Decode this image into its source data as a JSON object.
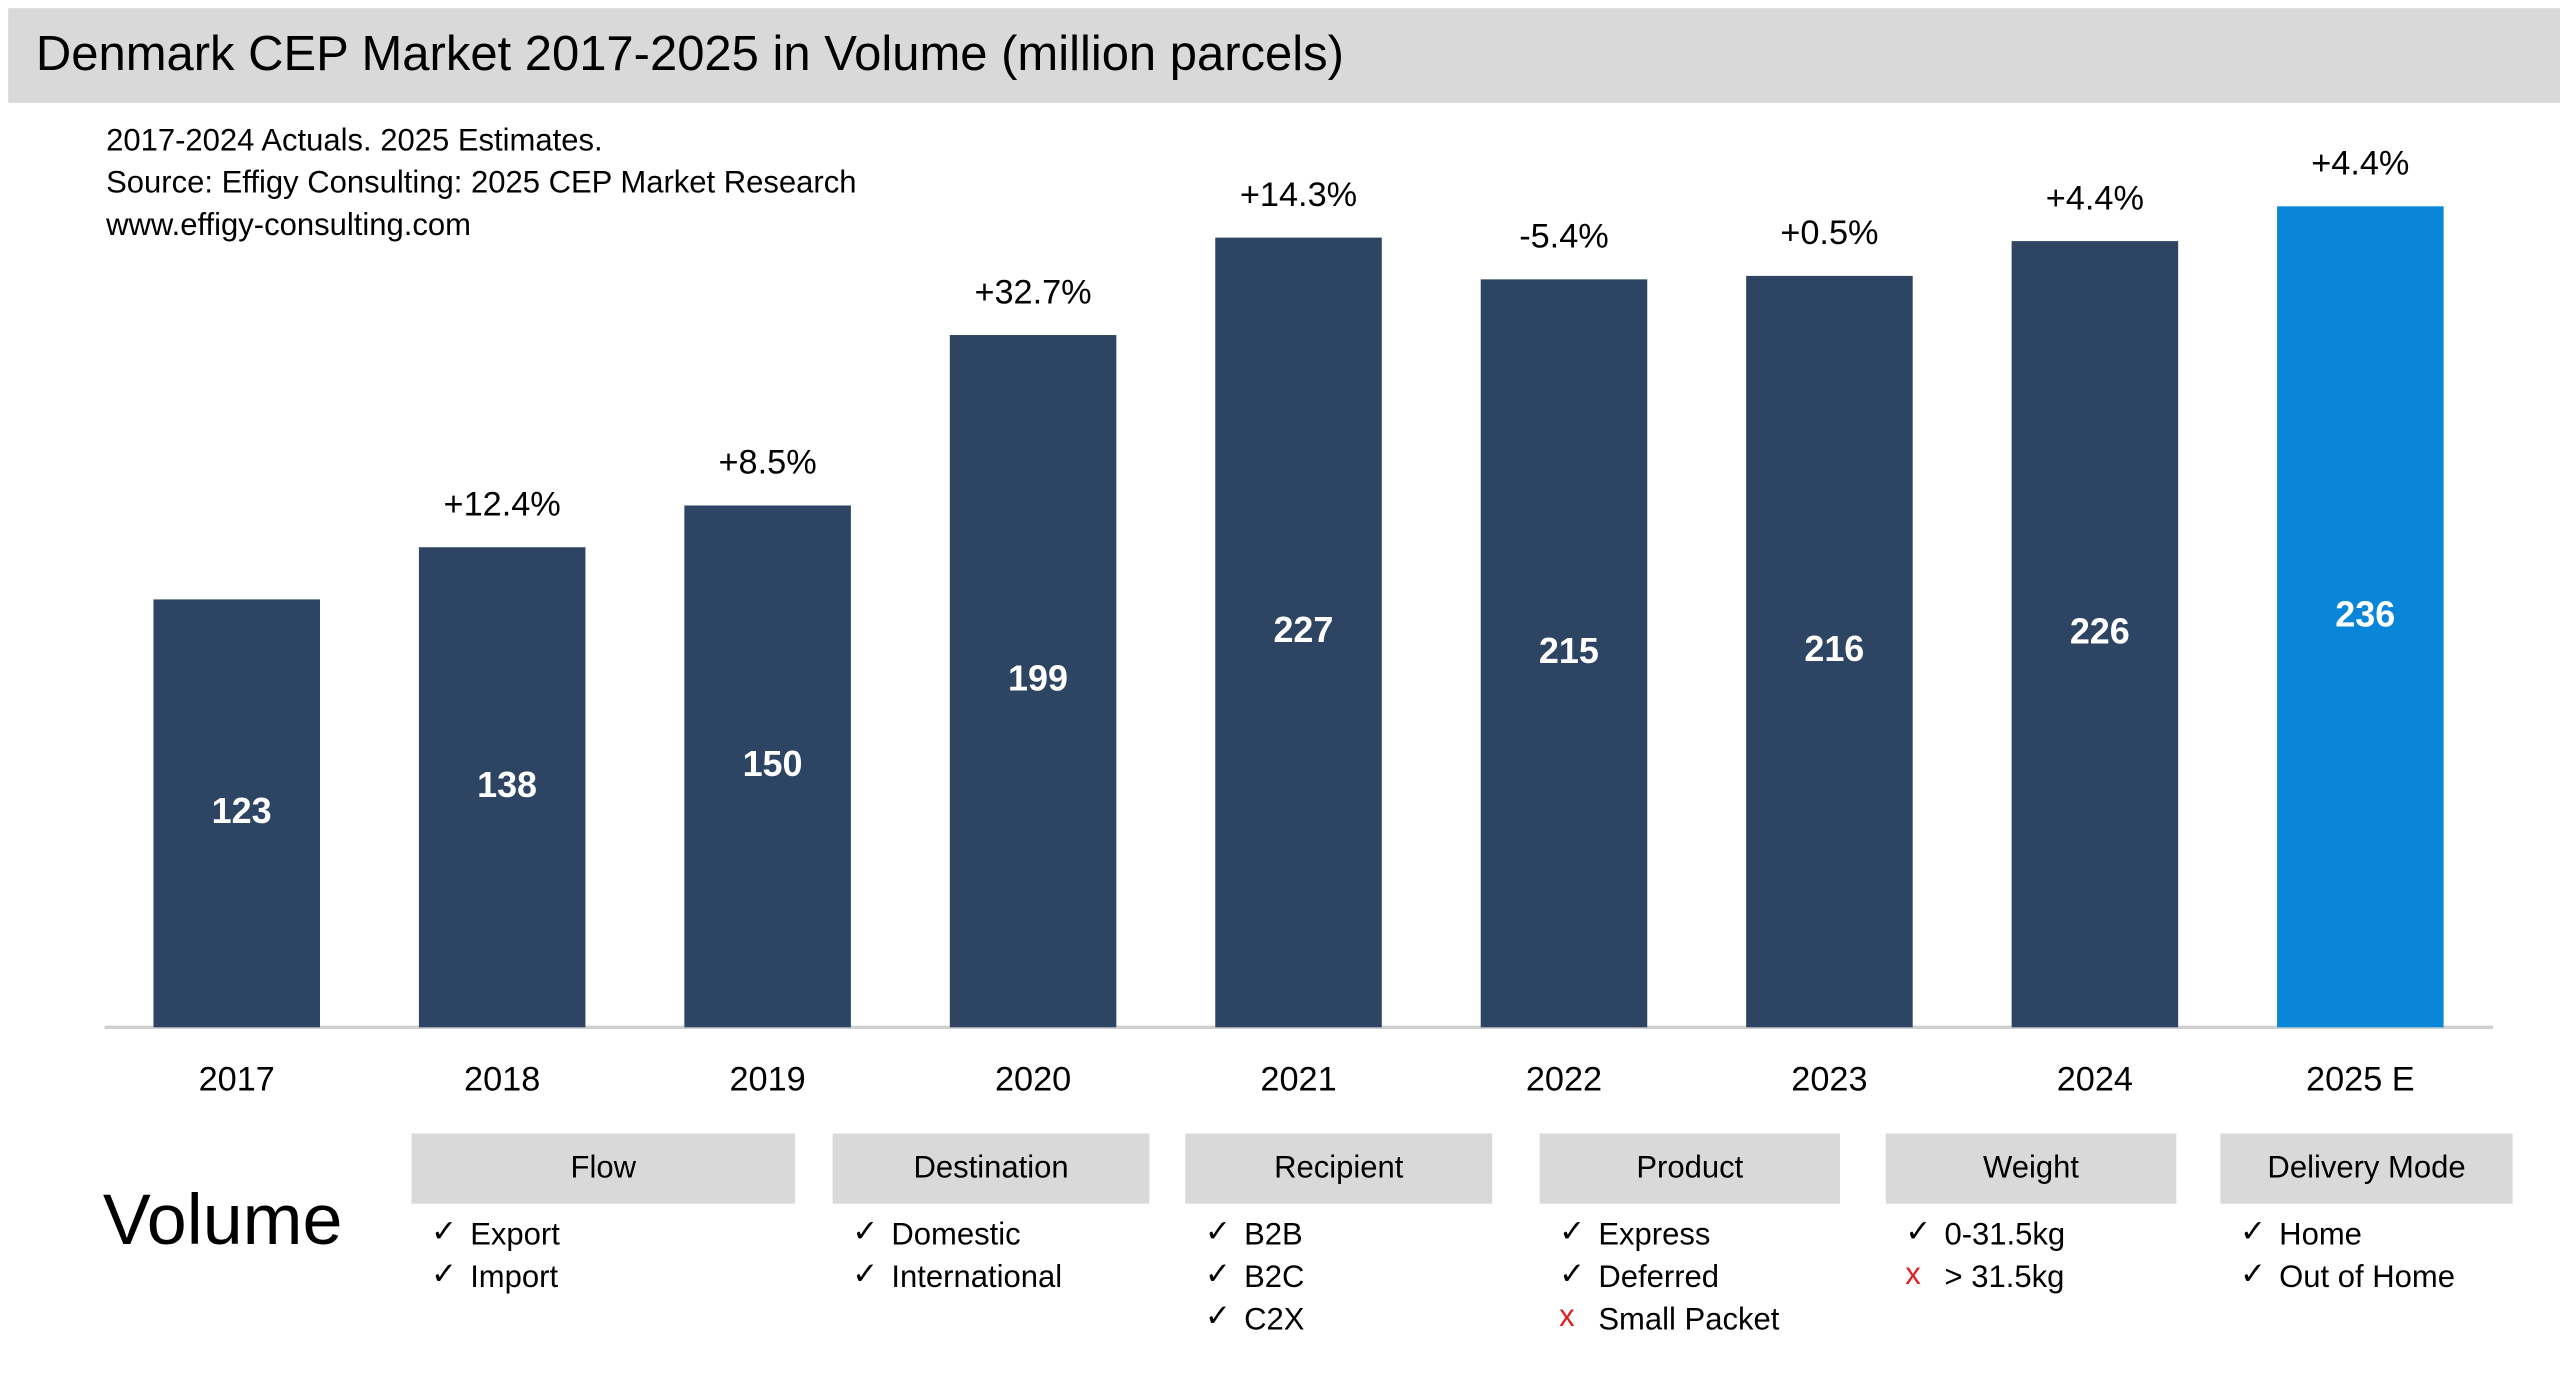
{
  "chart_data": {
    "type": "bar",
    "title": "Denmark CEP Market 2017-2025 in Volume (million parcels)",
    "subtitle": [
      "2017-2024 Actuals. 2025 Estimates.",
      "Source: Effigy Consulting: 2025 CEP Market Research",
      "www.effigy-consulting.com"
    ],
    "categories": [
      "2017",
      "2018",
      "2019",
      "2020",
      "2021",
      "2022",
      "2023",
      "2024",
      "2025 E"
    ],
    "values": [
      123,
      138,
      150,
      199,
      227,
      215,
      216,
      226,
      236
    ],
    "colors": [
      "#2d4563",
      "#2d4563",
      "#2d4563",
      "#2d4563",
      "#2d4563",
      "#2d4563",
      "#2d4563",
      "#2d4563",
      "#0a86d8"
    ],
    "annotations": [
      null,
      "+12.4%",
      "+8.5%",
      "+32.7%",
      "+14.3%",
      "-5.4%",
      "+0.5%",
      "+4.4%",
      "+4.4%"
    ],
    "ylim": [
      0,
      250
    ]
  },
  "table": {
    "label": "Volume",
    "groups": [
      {
        "title": "Flow",
        "items": [
          {
            "mark": "✓",
            "color": "#000000",
            "text": "Export"
          },
          {
            "mark": "✓",
            "color": "#000000",
            "text": "Import"
          }
        ]
      },
      {
        "title": "Destination",
        "items": [
          {
            "mark": "✓",
            "color": "#000000",
            "text": "Domestic"
          },
          {
            "mark": "✓",
            "color": "#000000",
            "text": "International"
          }
        ]
      },
      {
        "title": "Recipient",
        "items": [
          {
            "mark": "✓",
            "color": "#000000",
            "text": "B2B"
          },
          {
            "mark": "✓",
            "color": "#000000",
            "text": "B2C"
          },
          {
            "mark": "✓",
            "color": "#000000",
            "text": "C2X"
          }
        ]
      },
      {
        "title": "Product",
        "items": [
          {
            "mark": "✓",
            "color": "#000000",
            "text": "Express"
          },
          {
            "mark": "✓",
            "color": "#000000",
            "text": "Deferred"
          },
          {
            "mark": "x",
            "color": "#e02020",
            "text": "Small Packet"
          }
        ]
      },
      {
        "title": "Weight",
        "items": [
          {
            "mark": "✓",
            "color": "#000000",
            "text": "0-31.5kg"
          },
          {
            "mark": "x",
            "color": "#e02020",
            "text": "> 31.5kg"
          }
        ]
      },
      {
        "title": "Delivery Mode",
        "items": [
          {
            "mark": "✓",
            "color": "#000000",
            "text": "Home"
          },
          {
            "mark": "✓",
            "color": "#000000",
            "text": "Out of Home"
          }
        ]
      }
    ]
  }
}
